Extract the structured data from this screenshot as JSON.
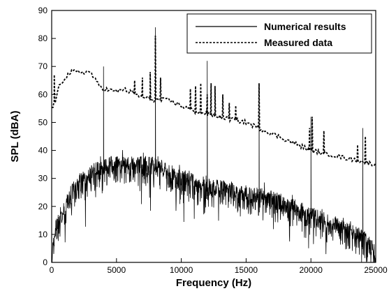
{
  "chart_data": {
    "type": "line",
    "xlabel": "Frequency (Hz)",
    "ylabel": "SPL (dBA)",
    "xlim": [
      0,
      25000
    ],
    "ylim": [
      0,
      90
    ],
    "x_ticks": [
      0,
      5000,
      10000,
      15000,
      20000,
      25000
    ],
    "y_ticks": [
      0,
      10,
      20,
      30,
      40,
      50,
      60,
      70,
      80,
      90
    ],
    "grid": false,
    "legend_position": "top-right",
    "series": [
      {
        "name": "Numerical results",
        "style": "solid",
        "color": "#000000",
        "envelope": [
          [
            0,
            5
          ],
          [
            300,
            15
          ],
          [
            800,
            20
          ],
          [
            1500,
            28
          ],
          [
            2500,
            33
          ],
          [
            3500,
            36
          ],
          [
            4500,
            38
          ],
          [
            5500,
            38
          ],
          [
            6500,
            38
          ],
          [
            7500,
            38
          ],
          [
            8500,
            37
          ],
          [
            9500,
            34
          ],
          [
            10500,
            33
          ],
          [
            11500,
            31
          ],
          [
            12500,
            30
          ],
          [
            13500,
            29
          ],
          [
            14500,
            28
          ],
          [
            15500,
            27
          ],
          [
            16500,
            26
          ],
          [
            17500,
            25
          ],
          [
            18500,
            23
          ],
          [
            19500,
            21
          ],
          [
            20500,
            19
          ],
          [
            21500,
            17
          ],
          [
            22500,
            15
          ],
          [
            23500,
            13
          ],
          [
            24500,
            10
          ],
          [
            25000,
            6
          ]
        ],
        "noise_amplitude": 12,
        "peaks": [
          [
            4000,
            70
          ],
          [
            8000,
            84
          ],
          [
            12000,
            72
          ],
          [
            16000,
            64
          ],
          [
            20000,
            52
          ],
          [
            24000,
            48
          ]
        ]
      },
      {
        "name": "Measured data",
        "style": "dashed",
        "color": "#000000",
        "envelope": [
          [
            0,
            55
          ],
          [
            300,
            58
          ],
          [
            600,
            63
          ],
          [
            1000,
            66
          ],
          [
            1500,
            68
          ],
          [
            2000,
            68
          ],
          [
            2500,
            68
          ],
          [
            3000,
            68
          ],
          [
            3500,
            64
          ],
          [
            4000,
            62
          ],
          [
            5000,
            61
          ],
          [
            5500,
            62
          ],
          [
            6000,
            61
          ],
          [
            7000,
            59
          ],
          [
            8000,
            58
          ],
          [
            9000,
            58
          ],
          [
            10000,
            56
          ],
          [
            11000,
            54
          ],
          [
            12000,
            53
          ],
          [
            13000,
            52
          ],
          [
            14000,
            51
          ],
          [
            15000,
            50
          ],
          [
            16000,
            48
          ],
          [
            17000,
            46
          ],
          [
            18000,
            44
          ],
          [
            19000,
            42
          ],
          [
            20000,
            40
          ],
          [
            21000,
            39
          ],
          [
            22000,
            38
          ],
          [
            23000,
            37
          ],
          [
            24000,
            36
          ],
          [
            25000,
            35
          ]
        ],
        "peaks": [
          [
            200,
            67
          ],
          [
            6400,
            65
          ],
          [
            7000,
            66
          ],
          [
            7600,
            68
          ],
          [
            8000,
            81
          ],
          [
            8400,
            66
          ],
          [
            10700,
            62
          ],
          [
            11100,
            63
          ],
          [
            11500,
            64
          ],
          [
            12000,
            60
          ],
          [
            12300,
            64
          ],
          [
            12600,
            63
          ],
          [
            13200,
            60
          ],
          [
            13700,
            57
          ],
          [
            14200,
            56
          ],
          [
            16000,
            64
          ],
          [
            19900,
            48
          ],
          [
            20100,
            52
          ],
          [
            21000,
            47
          ],
          [
            23600,
            42
          ],
          [
            24200,
            45
          ]
        ]
      }
    ]
  }
}
